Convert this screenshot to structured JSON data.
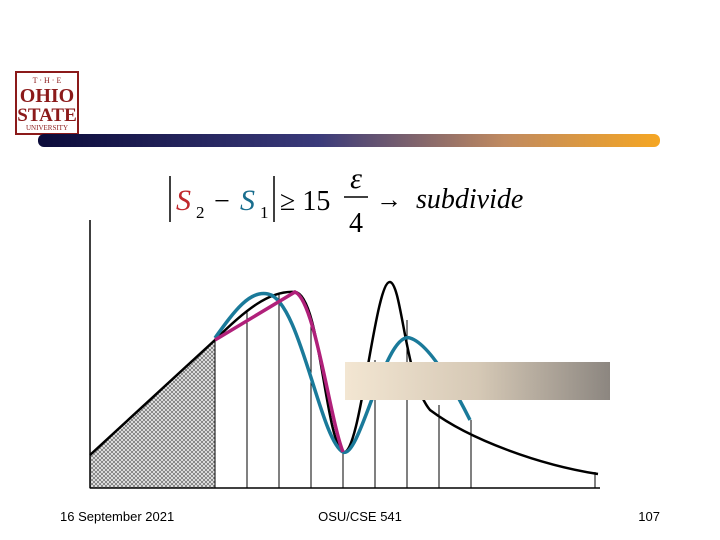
{
  "logo": {
    "top": "T · H · E",
    "ohio": "OHIO",
    "state": "STATE",
    "university": "UNIVERSITY"
  },
  "formula": {
    "s2": "S",
    "s2_sub": "2",
    "minus": "−",
    "s1": "S",
    "s1_sub": "1",
    "relation": "≥ 15",
    "numerator": "ε",
    "denominator": "4",
    "arrow": "→",
    "result": "subdivide"
  },
  "footer": {
    "date": "16 September 2021",
    "course": "OSU/CSE 541",
    "page": "107"
  }
}
